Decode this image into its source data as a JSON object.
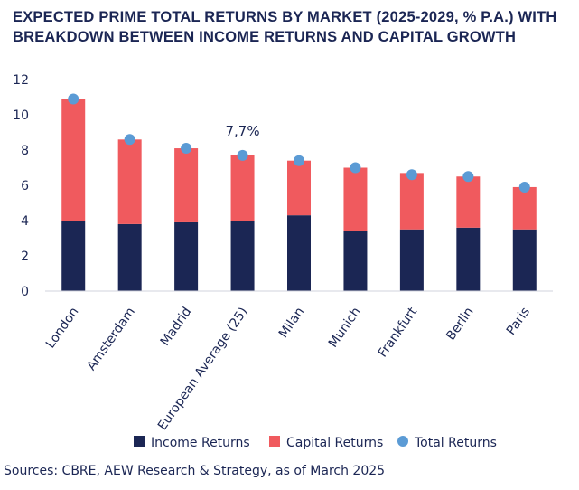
{
  "title_lines": [
    "EXPECTED PRIME TOTAL RETURNS BY MARKET (2025-2029, % P.A.) WITH",
    "BREAKDOWN BETWEEN INCOME RETURNS AND CAPITAL GROWTH"
  ],
  "source": "Sources: CBRE, AEW Research & Strategy, as of March 2025",
  "chart_data": {
    "type": "bar",
    "stacked": true,
    "categories": [
      "London",
      "Amsterdam",
      "Madrid",
      "European Average (25)",
      "Milan",
      "Munich",
      "Frankfurt",
      "Berlin",
      "Paris"
    ],
    "series": [
      {
        "name": "Income Returns",
        "type": "bar",
        "color": "#1b2654",
        "values": [
          4.0,
          3.8,
          3.9,
          4.0,
          4.3,
          3.4,
          3.5,
          3.6,
          3.5
        ]
      },
      {
        "name": "Capital Returns",
        "type": "bar",
        "color": "#f05a5e",
        "values": [
          6.9,
          4.8,
          4.2,
          3.7,
          3.1,
          3.6,
          3.2,
          2.9,
          2.4
        ]
      },
      {
        "name": "Total Returns",
        "type": "scatter",
        "color": "#5b9bd5",
        "values": [
          10.9,
          8.6,
          8.1,
          7.7,
          7.4,
          7.0,
          6.6,
          6.5,
          5.9
        ]
      }
    ],
    "annotations": [
      {
        "category": "European Average (25)",
        "text": "7,7%"
      }
    ],
    "ylim": [
      0,
      12
    ],
    "yticks": [
      "0",
      "2",
      "4",
      "6",
      "8",
      "10",
      "12"
    ],
    "grid": false,
    "legend": "bottom"
  }
}
